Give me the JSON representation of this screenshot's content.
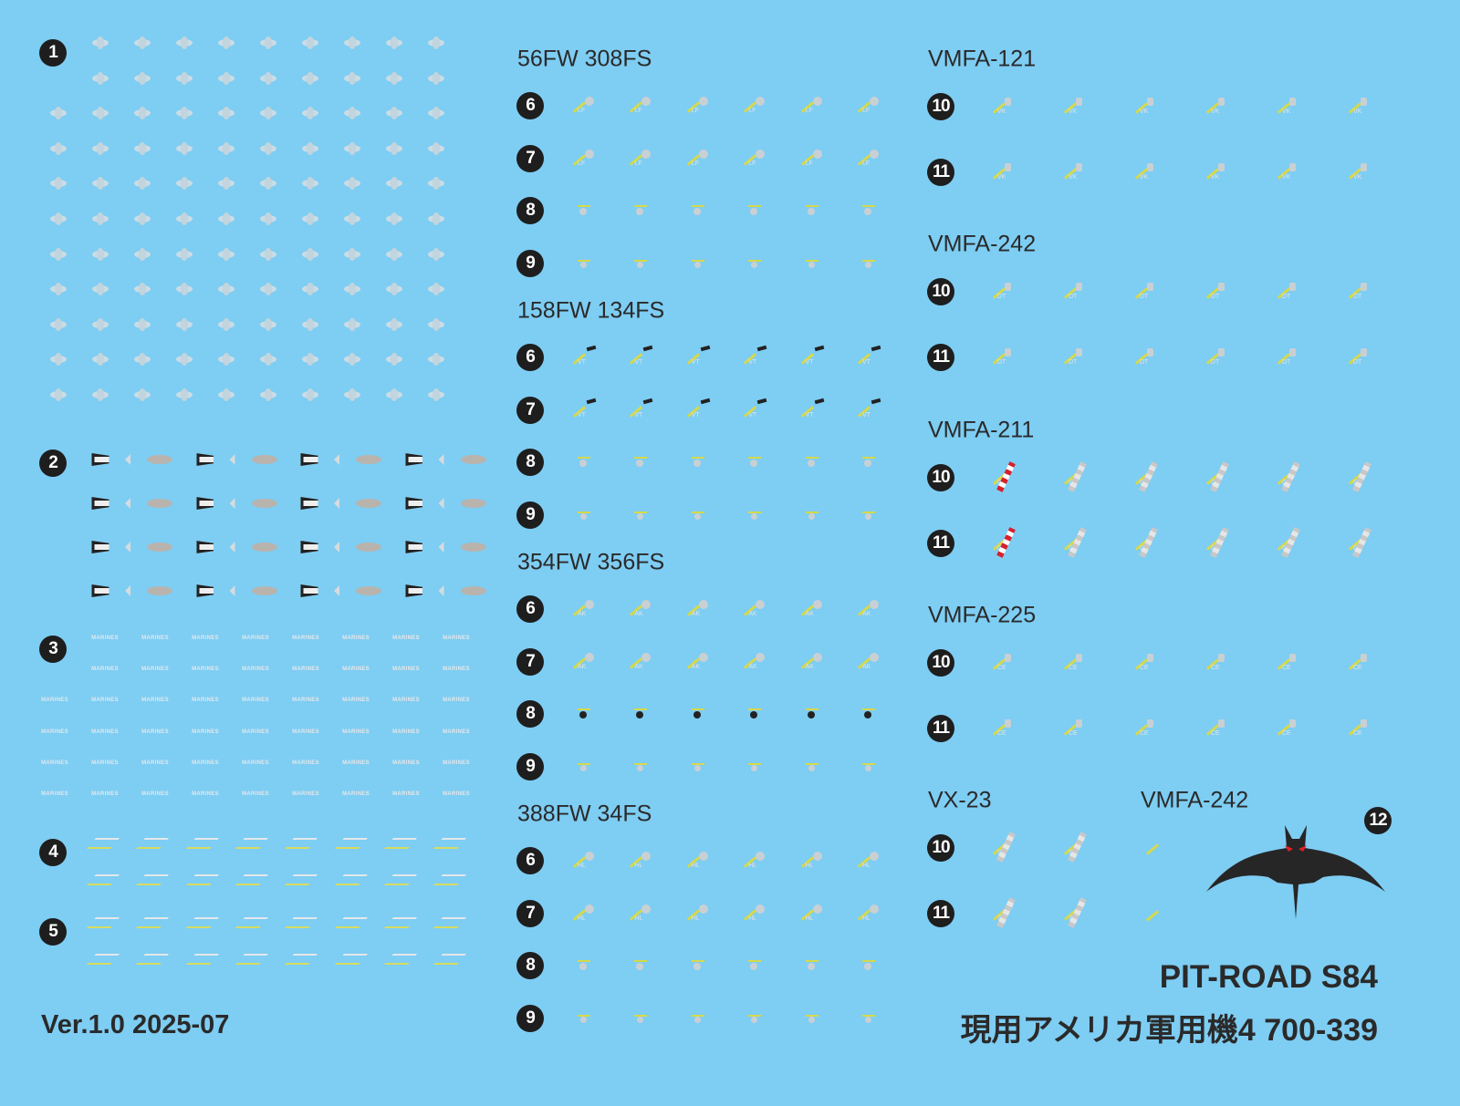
{
  "colors": {
    "background": "#7ecdf3",
    "marker": "#1e1e1e",
    "yellow": "#d6d94a",
    "red": "#d8202c",
    "bat": "#262626",
    "bat_eyes": "#e0202a"
  },
  "left_sections": [
    {
      "marker": "1",
      "type": "roundel"
    },
    {
      "marker": "2",
      "type": "flag-group"
    },
    {
      "marker": "3",
      "type": "marines-text",
      "text": "MARINES"
    },
    {
      "marker": "4",
      "type": "chevron"
    },
    {
      "marker": "5",
      "type": "chevron"
    }
  ],
  "usaf_groups": [
    {
      "title": "56FW 308FS",
      "code": "LF",
      "rows": [
        "6",
        "7",
        "8",
        "9"
      ]
    },
    {
      "title": "158FW 134FS",
      "code": "VT",
      "rows": [
        "6",
        "7",
        "8",
        "9"
      ]
    },
    {
      "title": "354FW 356FS",
      "code": "AK",
      "rows": [
        "6",
        "7",
        "8",
        "9"
      ]
    },
    {
      "title": "388FW 34FS",
      "code": "HL",
      "rows": [
        "6",
        "7",
        "8",
        "9"
      ]
    }
  ],
  "usmc_groups": [
    {
      "title": "VMFA-121",
      "code": "VK",
      "rows": [
        "10",
        "11"
      ]
    },
    {
      "title": "VMFA-242",
      "code": "DT",
      "rows": [
        "10",
        "11"
      ]
    },
    {
      "title": "VMFA-211",
      "code": "CF",
      "rows": [
        "10",
        "11"
      ],
      "stripe": "red"
    },
    {
      "title": "VMFA-225",
      "code": "CE",
      "rows": [
        "10",
        "11"
      ]
    },
    {
      "title": "VX-23",
      "code": "SD",
      "rows": [
        "10",
        "11"
      ],
      "stripe": "grey"
    },
    {
      "title": "VMFA-242",
      "code": "DT",
      "rows": []
    }
  ],
  "bat": {
    "marker": "12",
    "icon": "bat-emblem"
  },
  "version": "Ver.1.0 2025-07",
  "product": {
    "line1": "PIT-ROAD S84",
    "line2": "現用アメリカ軍用機4 700-339"
  }
}
